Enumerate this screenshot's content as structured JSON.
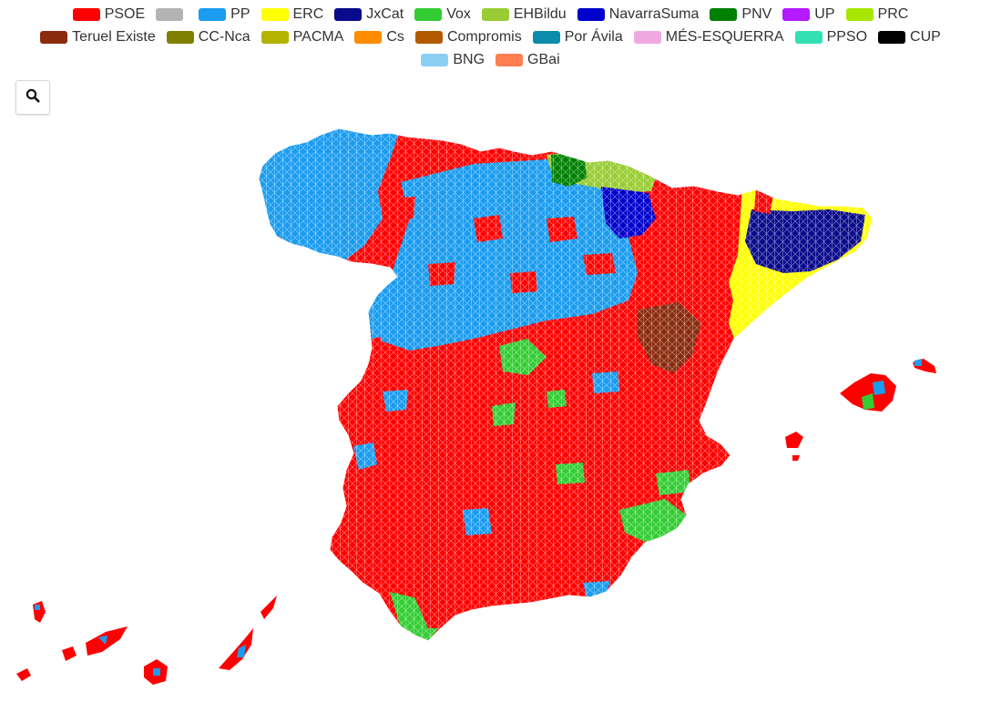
{
  "legend": {
    "items": [
      {
        "label": "PSOE",
        "color": "#ff0000"
      },
      {
        "label": "",
        "color": "#b3b3b3"
      },
      {
        "label": "PP",
        "color": "#1a9cf0"
      },
      {
        "label": "ERC",
        "color": "#ffff00"
      },
      {
        "label": "JxCat",
        "color": "#0a0a8c"
      },
      {
        "label": "Vox",
        "color": "#33cc33"
      },
      {
        "label": "EHBildu",
        "color": "#99cc33"
      },
      {
        "label": "NavarraSuma",
        "color": "#0000cc"
      },
      {
        "label": "PNV",
        "color": "#008000"
      },
      {
        "label": "UP",
        "color": "#b31aff"
      },
      {
        "label": "PRC",
        "color": "#a6e600"
      },
      {
        "label": "Teruel Existe",
        "color": "#8b2b0e"
      },
      {
        "label": "CC-Nca",
        "color": "#808000"
      },
      {
        "label": "PACMA",
        "color": "#b3b300"
      },
      {
        "label": "Cs",
        "color": "#ff8c00"
      },
      {
        "label": "Compromis",
        "color": "#b35900"
      },
      {
        "label": "Por Ávila",
        "color": "#0a8caa"
      },
      {
        "label": "MÉS-ESQUERRA",
        "color": "#f0a8e0"
      },
      {
        "label": "PPSO",
        "color": "#33e0b3"
      },
      {
        "label": "CUP",
        "color": "#000000"
      },
      {
        "label": "BNG",
        "color": "#8ccff5"
      },
      {
        "label": "GBai",
        "color": "#ff7f50"
      }
    ]
  },
  "search": {
    "icon": "search-icon"
  }
}
